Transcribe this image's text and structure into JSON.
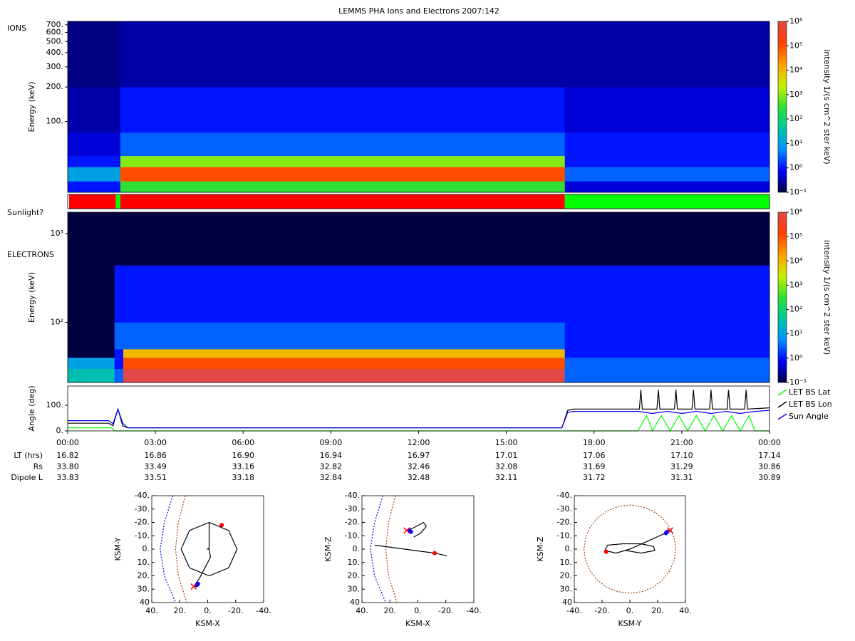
{
  "title": "LEMMS PHA Ions and Electrons  2007:142",
  "chart_data": [
    {
      "type": "heatmap",
      "label": "IONS",
      "ylabel": "Energy (keV)",
      "log_y": true,
      "xlim": [
        0,
        24
      ],
      "ylim": [
        24,
        750
      ],
      "x_edges": [
        0,
        1.8,
        17.0,
        24
      ],
      "y_edges": [
        24,
        30,
        40,
        50,
        80,
        200,
        750
      ],
      "values": [
        [
          1,
          300,
          0.5
        ],
        [
          10,
          100000,
          3
        ],
        [
          1,
          1000,
          1
        ],
        [
          0.5,
          3,
          1
        ],
        [
          0.3,
          1,
          0.5
        ],
        [
          0.2,
          0.3,
          0.3
        ]
      ],
      "yticks": [
        {
          "value": 100,
          "label": "100."
        },
        {
          "value": 200,
          "label": "200."
        },
        {
          "value": 300,
          "label": "300."
        },
        {
          "value": 400,
          "label": "400."
        },
        {
          "value": 500,
          "label": "500."
        },
        {
          "value": 600,
          "label": "600."
        },
        {
          "value": 700,
          "label": "700."
        }
      ],
      "colorbar": {
        "label": "intensity 1/(s cm^2 ster keV)",
        "lim": [
          0.1,
          1000000
        ],
        "ticks": [
          {
            "value": 0.1,
            "label": "10⁻¹"
          },
          {
            "value": 1,
            "label": "10⁰"
          },
          {
            "value": 10,
            "label": "10¹"
          },
          {
            "value": 100,
            "label": "10²"
          },
          {
            "value": 1000,
            "label": "10³"
          },
          {
            "value": 10000,
            "label": "10⁴"
          },
          {
            "value": 100000,
            "label": "10⁵"
          },
          {
            "value": 1000000,
            "label": "10⁶"
          }
        ],
        "colors": [
          "#000040",
          "#0000ff",
          "#0090ff",
          "#00c8a0",
          "#30e030",
          "#c8f000",
          "#ffa000",
          "#ff4000",
          "#e04848"
        ]
      }
    },
    {
      "type": "segments",
      "label": "Sunlight?",
      "xlim": [
        0,
        24
      ],
      "x_edges": [
        0,
        0.05,
        1.65,
        1.8,
        17.0,
        24
      ],
      "colors": [
        "#ffffff",
        "#ff0000",
        "#00ff00",
        "#ff0000",
        "#00ff00"
      ]
    },
    {
      "type": "heatmap",
      "label": "ELECTRONS",
      "ylabel": "Energy (keV)",
      "log_y": true,
      "xlim": [
        0,
        24
      ],
      "ylim": [
        21,
        1740
      ],
      "x_edges": [
        0,
        1.6,
        1.9,
        17.0,
        24
      ],
      "y_edges": [
        21,
        30,
        40,
        50,
        100,
        440,
        1740
      ],
      "values": [
        [
          30,
          3,
          1000000,
          3
        ],
        [
          10,
          1,
          100000,
          3
        ],
        [
          0.1,
          1,
          10000,
          1
        ],
        [
          0.1,
          3,
          3,
          1
        ],
        [
          0.1,
          1,
          1,
          1
        ],
        [
          0.1,
          0.1,
          0.1,
          0.1
        ]
      ],
      "yticks": [
        {
          "value": 100,
          "label": "10²"
        },
        {
          "value": 1000,
          "label": "10³"
        }
      ],
      "colorbar": {
        "label": "intensity 1/(s cm^2 ster keV)",
        "lim": [
          0.1,
          1000000
        ],
        "ticks": [
          {
            "value": 0.1,
            "label": "10⁻¹"
          },
          {
            "value": 1,
            "label": "10⁰"
          },
          {
            "value": 10,
            "label": "10¹"
          },
          {
            "value": 100,
            "label": "10²"
          },
          {
            "value": 1000,
            "label": "10³"
          },
          {
            "value": 10000,
            "label": "10⁴"
          },
          {
            "value": 100000,
            "label": "10⁵"
          },
          {
            "value": 1000000,
            "label": "10⁶"
          }
        ],
        "colors": [
          "#000040",
          "#0000ff",
          "#0090ff",
          "#00c8a0",
          "#30e030",
          "#c8f000",
          "#ffa000",
          "#ff4000",
          "#e04848"
        ]
      }
    },
    {
      "type": "line",
      "ylabel": "Angle (deg)",
      "xlim": [
        0,
        24
      ],
      "ylim": [
        0,
        175
      ],
      "xticks": [
        {
          "value": 0,
          "label": "00:00"
        },
        {
          "value": 3,
          "label": "03:00"
        },
        {
          "value": 6,
          "label": "06:00"
        },
        {
          "value": 9,
          "label": "09:00"
        },
        {
          "value": 12,
          "label": "12:00"
        },
        {
          "value": 15,
          "label": "15:00"
        },
        {
          "value": 18,
          "label": "18:00"
        },
        {
          "value": 21,
          "label": "21:00"
        },
        {
          "value": 24,
          "label": "00:00"
        }
      ],
      "yticks": [
        {
          "value": 0,
          "label": "0."
        },
        {
          "value": 100,
          "label": "100."
        }
      ],
      "series": [
        {
          "name": "LET BS Lat",
          "color": "#00ff00",
          "x": [
            0,
            1.5,
            1.6,
            16.9,
            17.1,
            19.5,
            19.8,
            20.0,
            20.3,
            20.6,
            20.9,
            21.2,
            21.5,
            21.8,
            22.1,
            22.4,
            22.7,
            23.0,
            23.3,
            23.5,
            24
          ],
          "values": [
            12,
            12,
            0,
            0,
            0,
            0,
            60,
            0,
            60,
            0,
            60,
            0,
            60,
            0,
            60,
            0,
            60,
            0,
            60,
            0,
            0
          ]
        },
        {
          "name": "LET BS Lon",
          "color": "#000000",
          "x": [
            0,
            1.4,
            1.55,
            1.72,
            1.88,
            2.05,
            16.9,
            17.1,
            17.3,
            19.55,
            19.6,
            19.65,
            20.15,
            20.2,
            20.25,
            20.75,
            20.8,
            20.85,
            21.35,
            21.4,
            21.45,
            21.95,
            22.0,
            22.05,
            22.55,
            22.6,
            22.65,
            23.15,
            23.2,
            23.25,
            24
          ],
          "values": [
            30,
            30,
            20,
            85,
            20,
            12,
            12,
            80,
            85,
            85,
            160,
            85,
            85,
            160,
            85,
            85,
            160,
            85,
            85,
            160,
            85,
            85,
            160,
            85,
            85,
            160,
            85,
            85,
            160,
            85,
            90
          ]
        },
        {
          "name": "Sun Angle",
          "color": "#0000ff",
          "x": [
            0,
            1.4,
            1.55,
            1.72,
            1.88,
            2.05,
            16.9,
            17.1,
            17.3,
            19.5,
            20.0,
            20.5,
            21.0,
            21.5,
            22.0,
            22.5,
            23.0,
            23.5,
            24
          ],
          "values": [
            40,
            40,
            28,
            85,
            30,
            12,
            12,
            72,
            76,
            76,
            68,
            76,
            68,
            76,
            68,
            76,
            68,
            76,
            80
          ]
        }
      ]
    },
    {
      "type": "orbit",
      "xlabel": "KSM-X",
      "ylabel": "KSM-Y",
      "xlim": [
        40,
        -40
      ],
      "ylim": [
        40,
        -40
      ],
      "xticks": [
        {
          "value": 40,
          "label": "40."
        },
        {
          "value": 20,
          "label": "20."
        },
        {
          "value": 0,
          "label": "0."
        },
        {
          "value": -20,
          "label": "-20."
        },
        {
          "value": -40,
          "label": "-40."
        }
      ],
      "yticks": [
        {
          "value": 40,
          "label": "40"
        },
        {
          "value": 30,
          "label": "30."
        },
        {
          "value": 20,
          "label": "20."
        },
        {
          "value": 10,
          "label": "10."
        },
        {
          "value": 0,
          "label": "0."
        },
        {
          "value": -10,
          "label": "-10."
        },
        {
          "value": -20,
          "label": "-20."
        },
        {
          "value": -30,
          "label": "-30."
        },
        {
          "value": -40,
          "label": "-40."
        }
      ],
      "series": [
        {
          "color": "#0000ff",
          "dashed": true,
          "x": [
            25,
            31,
            34,
            31,
            23
          ],
          "values": [
            -40,
            -20,
            0,
            20,
            40
          ]
        },
        {
          "color": "#a0400a",
          "dashed": true,
          "x": [
            16,
            21,
            23,
            21,
            15
          ],
          "values": [
            -40,
            -20,
            0,
            20,
            40
          ]
        },
        {
          "color": "#000000",
          "x": [
            10,
            6,
            2,
            -2,
            -1,
            0,
            -1,
            -1,
            -15,
            -21,
            -15,
            -1,
            13,
            19,
            13,
            -1
          ],
          "values": [
            28,
            22,
            14,
            6,
            0,
            0,
            -1,
            -20,
            -14,
            0,
            14,
            20,
            14,
            0,
            -14,
            -20
          ]
        },
        {
          "color": "#0000ff",
          "marker": "dot",
          "x": [
            8,
            7
          ],
          "values": [
            27,
            26
          ]
        },
        {
          "color": "#ff0000",
          "marker": "cross",
          "x": [
            10
          ],
          "values": [
            28
          ]
        },
        {
          "color": "#ff0000",
          "marker": "dot",
          "x": [
            -10
          ],
          "values": [
            -18
          ]
        }
      ]
    },
    {
      "type": "orbit",
      "xlabel": "KSM-X",
      "ylabel": "KSM-Z",
      "xlim": [
        40,
        -40
      ],
      "ylim": [
        40,
        -40
      ],
      "xticks": [
        {
          "value": 40,
          "label": "40."
        },
        {
          "value": 20,
          "label": "20."
        },
        {
          "value": 0,
          "label": "0."
        },
        {
          "value": -20,
          "label": "-20."
        },
        {
          "value": -40,
          "label": "-40."
        }
      ],
      "yticks": [
        {
          "value": 40,
          "label": "40"
        },
        {
          "value": 30,
          "label": "30."
        },
        {
          "value": 20,
          "label": "20."
        },
        {
          "value": 10,
          "label": "10."
        },
        {
          "value": 0,
          "label": "0."
        },
        {
          "value": -10,
          "label": "-10."
        },
        {
          "value": -20,
          "label": "-20."
        },
        {
          "value": -30,
          "label": "-30."
        },
        {
          "value": -40,
          "label": "-40."
        }
      ],
      "series": [
        {
          "color": "#0000ff",
          "dashed": true,
          "x": [
            25,
            31,
            34,
            31,
            23
          ],
          "values": [
            -40,
            -20,
            0,
            20,
            40
          ]
        },
        {
          "color": "#a0400a",
          "dashed": true,
          "x": [
            16,
            21,
            23,
            21,
            15
          ],
          "values": [
            -40,
            -20,
            0,
            20,
            40
          ]
        },
        {
          "color": "#000000",
          "x": [
            31,
            -12,
            -21
          ],
          "values": [
            -3,
            3,
            5
          ]
        },
        {
          "color": "#000000",
          "x": [
            8,
            3,
            -4,
            -6,
            -2,
            3
          ],
          "values": [
            -14,
            -16,
            -20,
            -17,
            -12,
            -9
          ]
        },
        {
          "color": "#0000ff",
          "marker": "dot",
          "x": [
            6,
            5
          ],
          "values": [
            -14,
            -13
          ]
        },
        {
          "color": "#ff0000",
          "marker": "cross",
          "x": [
            8
          ],
          "values": [
            -14
          ]
        },
        {
          "color": "#ff0000",
          "marker": "dot",
          "x": [
            -12
          ],
          "values": [
            3
          ]
        }
      ]
    },
    {
      "type": "orbit",
      "xlabel": "KSM-Y",
      "ylabel": "KSM-Z",
      "xlim": [
        -40,
        40
      ],
      "ylim": [
        40,
        -40
      ],
      "xticks": [
        {
          "value": -40,
          "label": "-40."
        },
        {
          "value": -20,
          "label": "-20."
        },
        {
          "value": 0,
          "label": "0."
        },
        {
          "value": 20,
          "label": "20."
        },
        {
          "value": 40,
          "label": "40."
        }
      ],
      "yticks": [
        {
          "value": 40,
          "label": "40"
        },
        {
          "value": 30,
          "label": "30."
        },
        {
          "value": 20,
          "label": "20."
        },
        {
          "value": 10,
          "label": "10."
        },
        {
          "value": 0,
          "label": "0."
        },
        {
          "value": -10,
          "label": "-10."
        },
        {
          "value": -20,
          "label": "-20."
        },
        {
          "value": -30,
          "label": "-30."
        },
        {
          "value": -40,
          "label": "-40."
        }
      ],
      "series": [
        {
          "color": "#a0400a",
          "dashed": true,
          "x": [
            33,
            31.9,
            28.6,
            23.3,
            16.5,
            8.5,
            0,
            -8.5,
            -16.5,
            -23.3,
            -28.6,
            -31.9,
            -33,
            -31.9,
            -28.6,
            -23.3,
            -16.5,
            -8.5,
            0,
            8.5,
            16.5,
            23.3,
            28.6,
            31.9,
            33
          ],
          "values": [
            0,
            8.5,
            16.5,
            23.3,
            28.6,
            31.9,
            33,
            31.9,
            28.6,
            23.3,
            16.5,
            8.5,
            0,
            -8.5,
            -16.5,
            -23.3,
            -28.6,
            -31.9,
            -33,
            -31.9,
            -28.6,
            -23.3,
            -16.5,
            -8.5,
            0
          ]
        },
        {
          "color": "#000000",
          "x": [
            30,
            0,
            -10,
            -18,
            -16,
            -5,
            8,
            17,
            18,
            8,
            -3
          ],
          "values": [
            -14,
            0,
            3,
            1,
            -3,
            -4,
            -4,
            -2,
            1,
            3,
            1
          ]
        },
        {
          "color": "#0000ff",
          "marker": "dot",
          "x": [
            27,
            26
          ],
          "values": [
            -13,
            -12
          ]
        },
        {
          "color": "#ff0000",
          "marker": "cross",
          "x": [
            29
          ],
          "values": [
            -14
          ]
        },
        {
          "color": "#ff0000",
          "marker": "dot",
          "x": [
            -17
          ],
          "values": [
            2
          ]
        }
      ]
    }
  ],
  "ephemeris": {
    "rows": [
      {
        "label": "LT (hrs)",
        "values": [
          "16.82",
          "16.86",
          "16.90",
          "16.94",
          "16.97",
          "17.01",
          "17.06",
          "17.10",
          "17.14"
        ]
      },
      {
        "label": "Rs",
        "values": [
          "33.80",
          "33.49",
          "33.16",
          "32.82",
          "32.46",
          "32.08",
          "31.69",
          "31.29",
          "30.86"
        ]
      },
      {
        "label": "Dipole L",
        "values": [
          "33.83",
          "33.51",
          "33.18",
          "32.84",
          "32.48",
          "32.11",
          "31.72",
          "31.31",
          "30.89"
        ]
      }
    ]
  }
}
